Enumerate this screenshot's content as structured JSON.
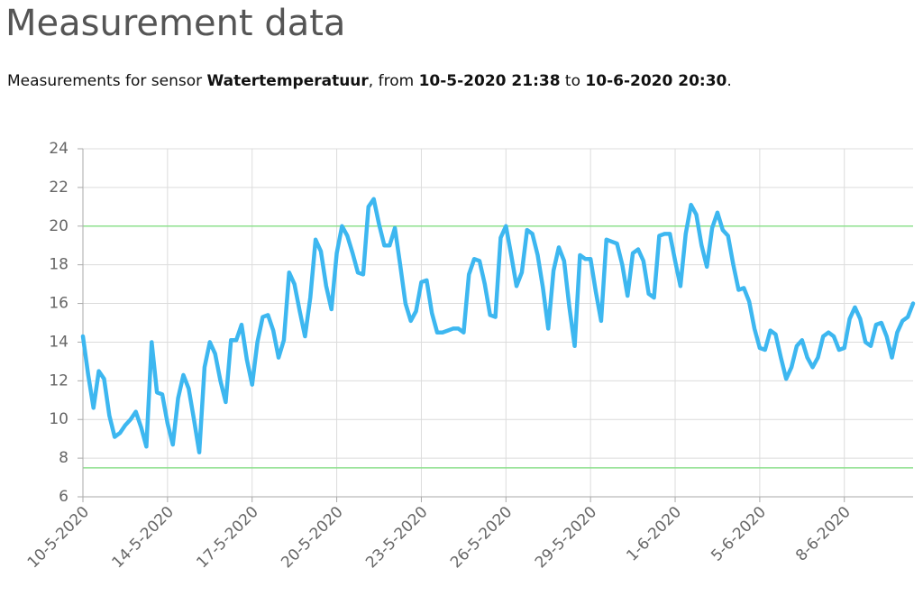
{
  "heading": "Measurement data",
  "subtitle": [
    {
      "text": "Measurements for sensor ",
      "bold": false
    },
    {
      "text": "Watertemperatuur",
      "bold": true
    },
    {
      "text": ", from ",
      "bold": false
    },
    {
      "text": "10-5-2020 21:38",
      "bold": true
    },
    {
      "text": " to ",
      "bold": false
    },
    {
      "text": "10-6-2020 20:30",
      "bold": true
    },
    {
      "text": ".",
      "bold": false
    }
  ],
  "chart_data": {
    "type": "line",
    "categories": [
      "10-5-2020",
      null,
      null,
      null,
      null,
      null,
      null,
      null,
      null,
      null,
      null,
      null,
      null,
      null,
      null,
      null,
      "14-5-2020",
      null,
      null,
      null,
      null,
      null,
      null,
      null,
      null,
      null,
      null,
      null,
      null,
      null,
      null,
      null,
      "17-5-2020",
      null,
      null,
      null,
      null,
      null,
      null,
      null,
      null,
      null,
      null,
      null,
      null,
      null,
      null,
      null,
      "20-5-2020",
      null,
      null,
      null,
      null,
      null,
      null,
      null,
      null,
      null,
      null,
      null,
      null,
      null,
      null,
      null,
      "23-5-2020",
      null,
      null,
      null,
      null,
      null,
      null,
      null,
      null,
      null,
      null,
      null,
      null,
      null,
      null,
      null,
      "26-5-2020",
      null,
      null,
      null,
      null,
      null,
      null,
      null,
      null,
      null,
      null,
      null,
      null,
      null,
      null,
      null,
      "29-5-2020",
      null,
      null,
      null,
      null,
      null,
      null,
      null,
      null,
      null,
      null,
      null,
      null,
      null,
      null,
      null,
      "1-6-2020",
      null,
      null,
      null,
      null,
      null,
      null,
      null,
      null,
      null,
      null,
      null,
      null,
      null,
      null,
      null,
      "5-6-2020",
      null,
      null,
      null,
      null,
      null,
      null,
      null,
      null,
      null,
      null,
      null,
      null,
      null,
      null,
      null,
      "8-6-2020",
      null,
      null,
      null,
      null,
      null,
      null,
      null,
      null,
      null,
      null,
      null,
      null,
      null
    ],
    "series": [
      {
        "color": "#3db7f0",
        "values": [
          14.3,
          12.3,
          10.6,
          12.5,
          12.1,
          10.2,
          9.1,
          9.3,
          9.7,
          10.0,
          10.4,
          9.6,
          8.6,
          14.0,
          11.4,
          11.3,
          9.8,
          8.7,
          11.1,
          12.3,
          11.6,
          10.0,
          8.3,
          12.7,
          14.0,
          13.4,
          12.0,
          10.9,
          14.1,
          14.1,
          14.9,
          13.1,
          11.8,
          14.0,
          15.3,
          15.4,
          14.6,
          13.2,
          14.1,
          17.6,
          17.0,
          15.6,
          14.3,
          16.3,
          19.3,
          18.7,
          16.9,
          15.7,
          18.6,
          20.0,
          19.5,
          18.6,
          17.6,
          17.5,
          21.0,
          21.4,
          20.1,
          19.0,
          19.0,
          19.9,
          18.0,
          16.0,
          15.1,
          15.6,
          17.1,
          17.2,
          15.5,
          14.5,
          14.5,
          14.6,
          14.7,
          14.7,
          14.5,
          17.5,
          18.3,
          18.2,
          17.0,
          15.4,
          15.3,
          19.4,
          20.0,
          18.5,
          16.9,
          17.6,
          19.8,
          19.6,
          18.5,
          16.8,
          14.7,
          17.7,
          18.9,
          18.2,
          15.8,
          13.8,
          18.5,
          18.3,
          18.3,
          16.6,
          15.1,
          19.3,
          19.2,
          19.1,
          18.0,
          16.4,
          18.6,
          18.8,
          18.2,
          16.5,
          16.3,
          19.5,
          19.6,
          19.6,
          18.2,
          16.9,
          19.6,
          21.1,
          20.6,
          19.0,
          17.9,
          19.9,
          20.7,
          19.8,
          19.5,
          18.0,
          16.7,
          16.8,
          16.1,
          14.7,
          13.7,
          13.6,
          14.6,
          14.4,
          13.2,
          12.1,
          12.7,
          13.8,
          14.1,
          13.2,
          12.7,
          13.2,
          14.3,
          14.5,
          14.3,
          13.6,
          13.7,
          15.2,
          15.8,
          15.2,
          14.0,
          13.8,
          14.9,
          15.0,
          14.3,
          13.2,
          14.5,
          15.1,
          15.3,
          16.0
        ]
      }
    ],
    "ylim": [
      6,
      24
    ],
    "yticks": [
      6,
      8,
      10,
      12,
      14,
      16,
      18,
      20,
      22,
      24
    ],
    "grid": true,
    "thresholds": [
      {
        "value": 20,
        "color": "#8ee08e"
      },
      {
        "value": 7.5,
        "color": "#8ee08e"
      }
    ]
  }
}
